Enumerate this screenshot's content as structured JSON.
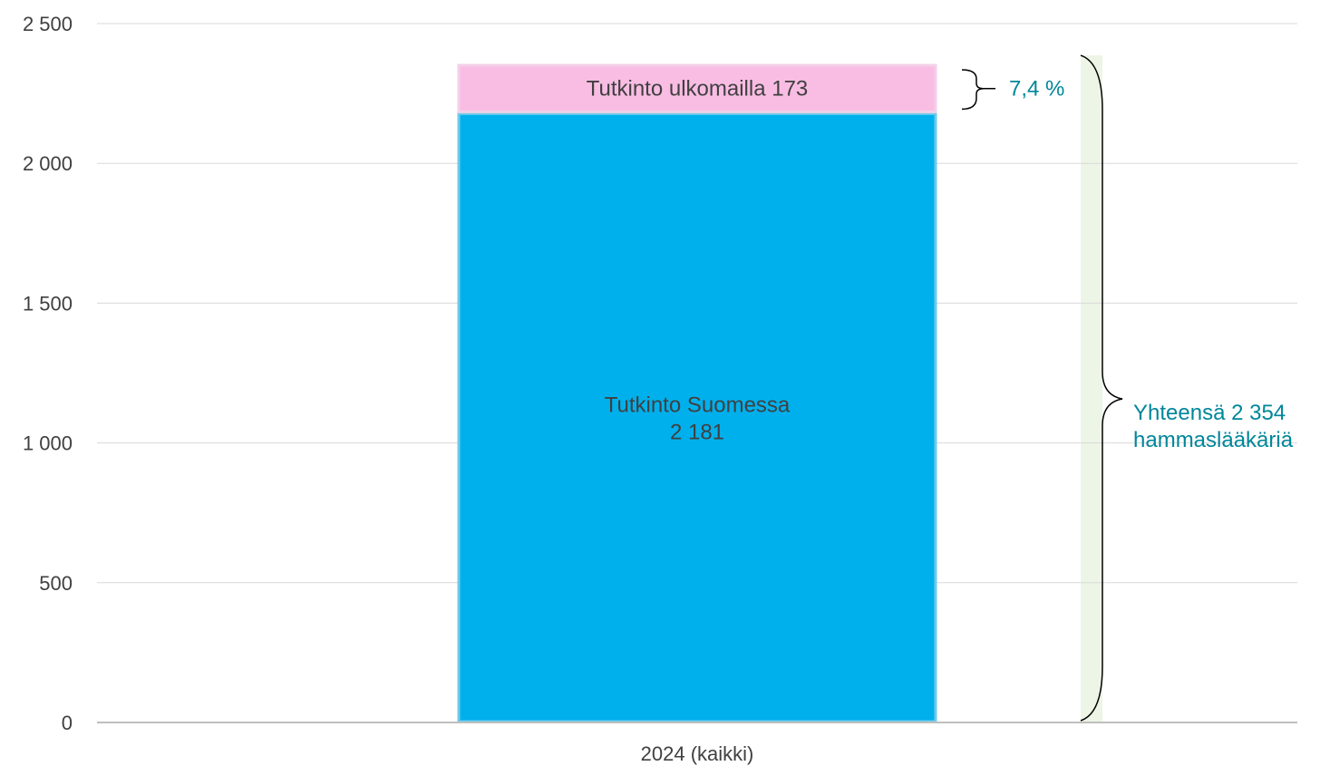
{
  "chart_data": {
    "type": "bar",
    "stacked": true,
    "categories": [
      "2024 (kaikki)"
    ],
    "series": [
      {
        "name": "Tutkinto Suomessa",
        "values": [
          2181
        ],
        "color": "#00b0ec",
        "label_lines": [
          "Tutkinto Suomessa",
          "2 181"
        ]
      },
      {
        "name": "Tutkinto ulkomailla",
        "values": [
          173
        ],
        "color": "#f9bde4",
        "label_lines": [
          "Tutkinto ulkomailla 173"
        ]
      }
    ],
    "ylim": [
      0,
      2500
    ],
    "yticks": [
      0,
      500,
      1000,
      1500,
      2000,
      2500
    ],
    "ytick_labels": [
      "0",
      "500",
      "1 000",
      "1 500",
      "2 000",
      "2 500"
    ],
    "grid": true,
    "annotations": {
      "share_label": "7,4 %",
      "total_lines": [
        "Yhteensä 2 354",
        "hammaslääkäriä"
      ],
      "accent_color": "#00869a",
      "total_band_color": "#edf5e6"
    }
  }
}
